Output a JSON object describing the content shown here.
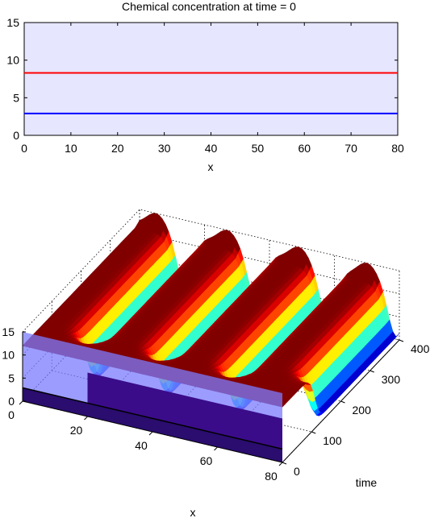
{
  "chart_data": [
    {
      "type": "line",
      "title": "Chemical concentration at time = 0",
      "xlabel": "x",
      "ylabel": "",
      "xlim": [
        0,
        80
      ],
      "ylim": [
        0,
        15
      ],
      "xticks": [
        "0",
        "10",
        "20",
        "30",
        "40",
        "50",
        "60",
        "70",
        "80"
      ],
      "yticks": [
        "0",
        "5",
        "10",
        "15"
      ],
      "grid": false,
      "background": "#e6e6ff",
      "series": [
        {
          "color": "#ff0000",
          "x": [
            0,
            80
          ],
          "values": [
            8.3,
            8.3
          ]
        },
        {
          "color": "#0000ff",
          "x": [
            0,
            80
          ],
          "values": [
            2.9,
            2.9
          ]
        }
      ]
    },
    {
      "type": "surface",
      "title": "",
      "xlabel": "x",
      "ylabel": "time",
      "zlabel": "",
      "xlim": [
        0,
        80
      ],
      "ylim": [
        0,
        400
      ],
      "zlim": [
        0,
        15
      ],
      "xticks": [
        "0",
        "20",
        "40",
        "60",
        "80"
      ],
      "yticks": [
        "0",
        "100",
        "200",
        "300",
        "400"
      ],
      "zticks": [
        "0",
        "5",
        "10",
        "15"
      ],
      "grid": true,
      "colormap": "jet",
      "stripe_centers_x": [
        14,
        36,
        58,
        79
      ],
      "stripe_onset_time": [
        75,
        75,
        75,
        110
      ],
      "background_level": 12,
      "stripe_min_level": 0.5,
      "stripe_width": 3.5,
      "initial_slice_level": 2.9,
      "slice_color": "#3a0c8a",
      "wall_color": "#7b7bff"
    }
  ]
}
